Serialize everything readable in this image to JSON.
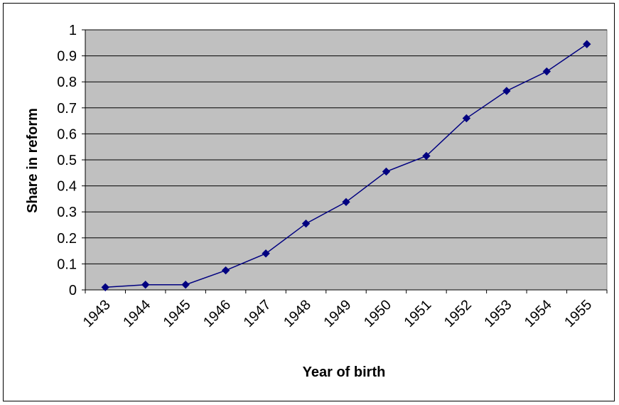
{
  "chart_data": {
    "type": "line",
    "title": "",
    "xlabel": "Year of birth",
    "ylabel": "Share in reform",
    "categories": [
      "1943",
      "1944",
      "1945",
      "1946",
      "1947",
      "1948",
      "1949",
      "1950",
      "1951",
      "1952",
      "1953",
      "1954",
      "1955"
    ],
    "series": [
      {
        "values": [
          0.01,
          0.02,
          0.02,
          0.075,
          0.14,
          0.255,
          0.338,
          0.455,
          0.515,
          0.66,
          0.765,
          0.84,
          0.945
        ]
      }
    ],
    "ylim": [
      0,
      1
    ],
    "yticks": [
      "0",
      "0.1",
      "0.2",
      "0.3",
      "0.4",
      "0.5",
      "0.6",
      "0.7",
      "0.8",
      "0.9",
      "1"
    ],
    "grid": true,
    "legend": "none",
    "colors": {
      "line": "#000080",
      "marker": "#000080",
      "plot_background": "#c0c0c0",
      "gridline": "#000000"
    }
  }
}
